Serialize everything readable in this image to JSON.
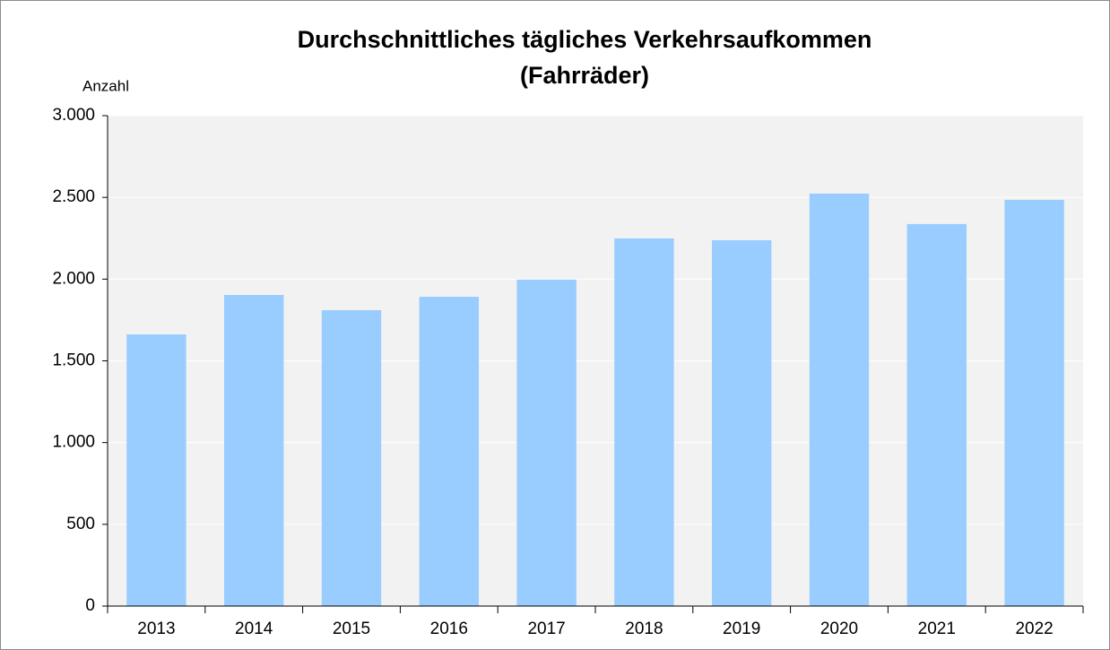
{
  "chart_data": {
    "type": "bar",
    "title": [
      "Durchschnittliches tägliches Verkehrsaufkommen",
      "(Fahrräder)"
    ],
    "y_label": "Anzahl",
    "categories": [
      "2013",
      "2014",
      "2015",
      "2016",
      "2017",
      "2018",
      "2019",
      "2020",
      "2021",
      "2022"
    ],
    "values": [
      1662,
      1903,
      1810,
      1892,
      1997,
      2249,
      2238,
      2523,
      2337,
      2485
    ],
    "color": "#99ccff",
    "ylim": [
      0,
      3000
    ],
    "yticks": [
      0,
      500,
      {
        "value": 1000,
        "label": "1.000"
      },
      {
        "value": 1500,
        "label": "1.500"
      },
      {
        "value": 2000,
        "label": "2.000"
      },
      {
        "value": 2500,
        "label": "2.500"
      },
      {
        "value": 3000,
        "label": "3.000"
      }
    ],
    "grid": true
  }
}
